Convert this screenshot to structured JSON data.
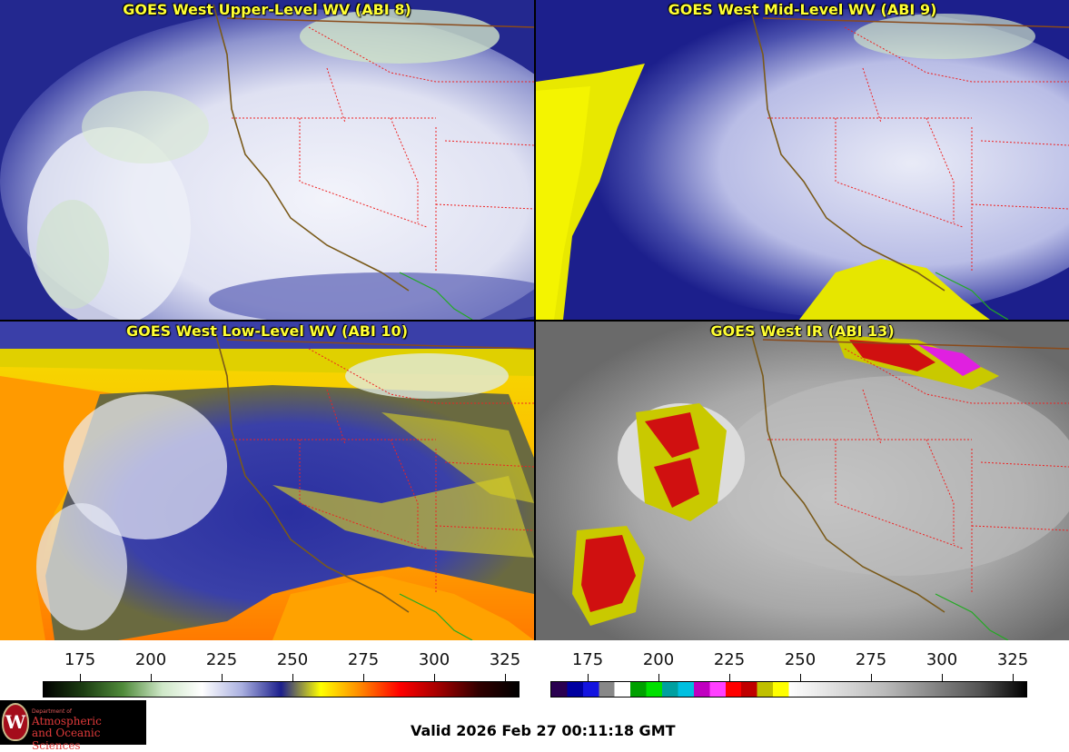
{
  "panels": [
    {
      "title": "GOES West Upper-Level WV (ABI 8)",
      "palette": "wv-upper"
    },
    {
      "title": "GOES West Mid-Level WV (ABI 9)",
      "palette": "wv-mid"
    },
    {
      "title": "GOES West Low-Level WV (ABI 10)",
      "palette": "wv-low"
    },
    {
      "title": "GOES West IR (ABI 13)",
      "palette": "ir"
    }
  ],
  "colorbars": {
    "wv": {
      "ticks": [
        "175",
        "200",
        "225",
        "250",
        "275",
        "300",
        "325"
      ],
      "stops": [
        "#000000",
        "#1c3d12",
        "#4f8a3a",
        "#cfe8c8",
        "#ffffff",
        "#aab0e0",
        "#1c1f8c",
        "#ffff00",
        "#ff8800",
        "#ff0000",
        "#a00000",
        "#300000",
        "#000000"
      ]
    },
    "ir": {
      "ticks": [
        "175",
        "200",
        "225",
        "250",
        "275",
        "300",
        "325"
      ],
      "segments": [
        "#2a0050",
        "#0000a0",
        "#1414e0",
        "#888888",
        "#ffffff",
        "#00a000",
        "#00e000",
        "#00a0a0",
        "#00c0e0",
        "#c000c0",
        "#ff40ff",
        "#ff0000",
        "#c00000",
        "#c0c000",
        "#ffff00"
      ]
    }
  },
  "logo": {
    "seal_letter": "W",
    "dept": "Department of",
    "line1": "Atmospheric",
    "line2": "and Oceanic Sciences"
  },
  "footer": {
    "valid_text": "Valid 2026 Feb 27 00:11:18 GMT"
  }
}
